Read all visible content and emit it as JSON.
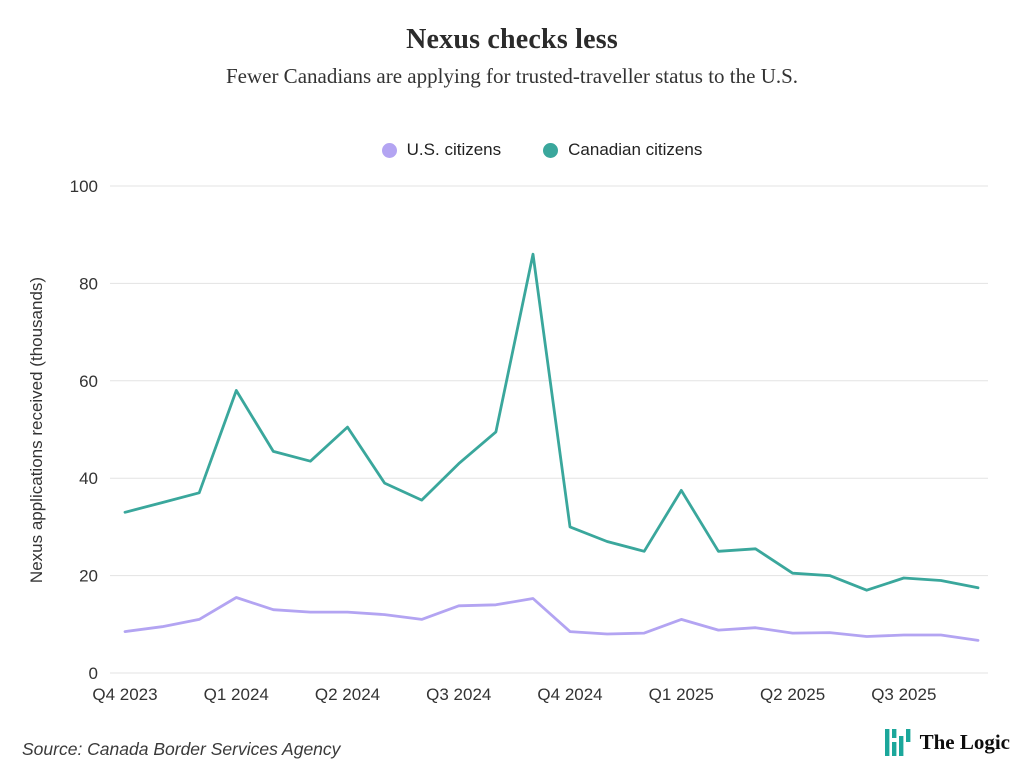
{
  "header": {
    "title": "Nexus checks less",
    "subtitle": "Fewer Canadians are applying for trusted-traveller status to the U.S."
  },
  "legend": [
    {
      "label": "U.S. citizens",
      "color": "#b3a4f2"
    },
    {
      "label": "Canadian citizens",
      "color": "#3aa79c"
    }
  ],
  "chart_data": {
    "type": "line",
    "title": "Nexus checks less",
    "subtitle": "Fewer Canadians are applying for trusted-traveller status to the U.S.",
    "xlabel": "",
    "ylabel": "Nexus applications received (thousands)",
    "ylim": [
      0,
      100
    ],
    "yticks": [
      0,
      20,
      40,
      60,
      80,
      100
    ],
    "grid": "horizontal",
    "legend_position": "top-center",
    "x": [
      "Oct 2023",
      "Nov 2023",
      "Dec 2023",
      "Jan 2024",
      "Feb 2024",
      "Mar 2024",
      "Apr 2024",
      "May 2024",
      "Jun 2024",
      "Jul 2024",
      "Aug 2024",
      "Sep 2024",
      "Oct 2024",
      "Nov 2024",
      "Dec 2024",
      "Jan 2025",
      "Feb 2025",
      "Mar 2025",
      "Apr 2025",
      "May 2025",
      "Jun 2025",
      "Jul 2025",
      "Aug 2025",
      "Sep 2025"
    ],
    "x_tick_labels": [
      "Q4 2023",
      "Q1 2024",
      "Q2 2024",
      "Q3 2024",
      "Q4 2024",
      "Q1 2025",
      "Q2 2025",
      "Q3 2025"
    ],
    "series": [
      {
        "name": "U.S. citizens",
        "color": "#b3a4f2",
        "values": [
          8.5,
          9.5,
          11,
          15.5,
          13,
          12.5,
          12.5,
          12,
          11,
          13.8,
          14,
          15.3,
          8.5,
          8,
          8.2,
          11,
          8.8,
          9.3,
          8.2,
          8.3,
          7.5,
          7.8,
          7.8,
          6.7
        ]
      },
      {
        "name": "Canadian citizens",
        "color": "#3aa79c",
        "values": [
          33,
          35,
          37,
          58,
          45.5,
          43.5,
          50.5,
          39,
          35.5,
          43,
          49.5,
          86,
          30,
          27,
          25,
          37.5,
          25,
          25.5,
          20.5,
          20,
          17,
          19.5,
          19,
          17.5
        ]
      }
    ]
  },
  "axes": {
    "ylabel": "Nexus applications received (thousands)"
  },
  "footer": {
    "source": "Source: Canada Border Services Agency",
    "brand": "The Logic"
  },
  "colors": {
    "grid": "#e3e3e3",
    "text": "#333333",
    "brand_teal": "#1ba79b"
  }
}
